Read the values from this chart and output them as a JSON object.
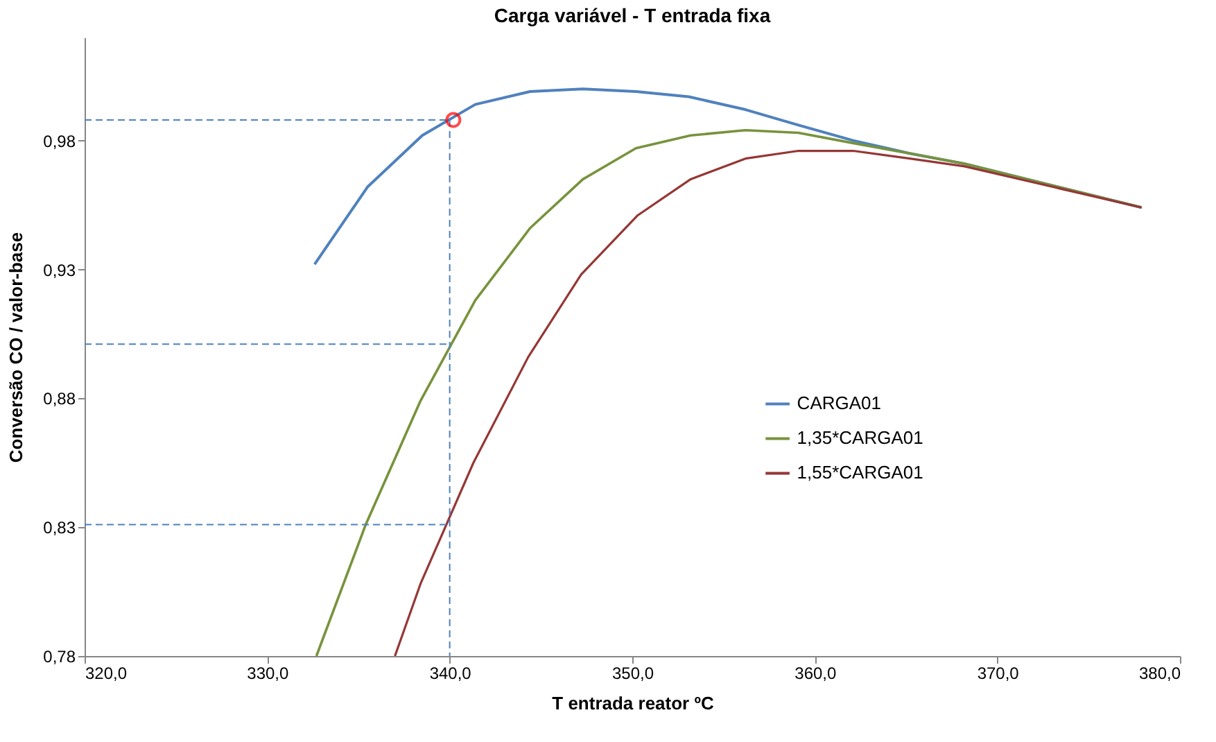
{
  "chart_data": {
    "type": "line",
    "title": "Carga  variável - T entrada fixa",
    "xlabel": "T entrada reator ºC",
    "ylabel": "Conversão CO / valor-base",
    "xlim": [
      320,
      380
    ],
    "ylim": [
      0.78,
      1.02
    ],
    "xticks": [
      {
        "value": 320,
        "label": "320,0"
      },
      {
        "value": 330,
        "label": "330,0"
      },
      {
        "value": 340,
        "label": "340,0"
      },
      {
        "value": 350,
        "label": "350,0"
      },
      {
        "value": 360,
        "label": "360,0"
      },
      {
        "value": 370,
        "label": "370,0"
      },
      {
        "value": 380,
        "label": "380,0"
      }
    ],
    "yticks": [
      {
        "value": 0.78,
        "label": "0,78"
      },
      {
        "value": 0.83,
        "label": "0,83"
      },
      {
        "value": 0.88,
        "label": "0,88"
      },
      {
        "value": 0.93,
        "label": "0,93"
      },
      {
        "value": 0.98,
        "label": "0,98"
      }
    ],
    "grid": false,
    "legend": "right",
    "marker": "none",
    "line_style": "solid",
    "series": [
      {
        "name": "CARGA01",
        "color": "#4f81bd",
        "x": [
          332.6,
          335.5,
          338.5,
          341.4,
          344.4,
          347.3,
          350.2,
          353.1,
          356.2,
          359.1,
          362.1,
          365.2,
          368.2,
          377.9
        ],
        "values": [
          0.932,
          0.962,
          0.982,
          0.994,
          0.999,
          1.0,
          0.999,
          0.997,
          0.992,
          0.986,
          0.98,
          0.975,
          0.971,
          0.954
        ]
      },
      {
        "name": "1,35*CARGA01",
        "color": "#77933c",
        "x": [
          332.7,
          335.4,
          338.4,
          341.4,
          344.4,
          347.3,
          350.2,
          353.2,
          356.2,
          359.1,
          362.1,
          365.2,
          368.2,
          377.9
        ],
        "values": [
          0.78,
          0.831,
          0.879,
          0.918,
          0.946,
          0.965,
          0.977,
          0.982,
          0.984,
          0.983,
          0.979,
          0.975,
          0.971,
          0.954
        ]
      },
      {
        "name": "1,55*CARGA01",
        "color": "#953735",
        "x": [
          337.0,
          338.4,
          341.3,
          344.3,
          347.2,
          350.3,
          353.2,
          356.2,
          359.1,
          362.1,
          365.2,
          368.2,
          377.9
        ],
        "values": [
          0.78,
          0.808,
          0.855,
          0.896,
          0.928,
          0.951,
          0.965,
          0.973,
          0.976,
          0.976,
          0.973,
          0.97,
          0.954
        ]
      },
      {
        "type": "line",
        "line_style": "dashed",
        "color": "#4f81bd",
        "x": [
          320,
          340
        ],
        "values": [
          0.988,
          0.988
        ]
      },
      {
        "type": "line",
        "line_style": "dashed",
        "color": "#4f81bd",
        "x": [
          320,
          340
        ],
        "values": [
          0.901,
          0.901
        ]
      },
      {
        "type": "line",
        "line_style": "dashed",
        "color": "#4f81bd",
        "x": [
          320,
          340
        ],
        "values": [
          0.831,
          0.831
        ]
      },
      {
        "type": "line",
        "line_style": "dashed",
        "color": "#4f81bd",
        "x": [
          340,
          340
        ],
        "values": [
          0.988,
          0.78
        ]
      },
      {
        "type": "scatter",
        "marker": "circle",
        "color": "#ff0000",
        "x": [
          340.2
        ],
        "values": [
          0.988
        ]
      }
    ]
  }
}
